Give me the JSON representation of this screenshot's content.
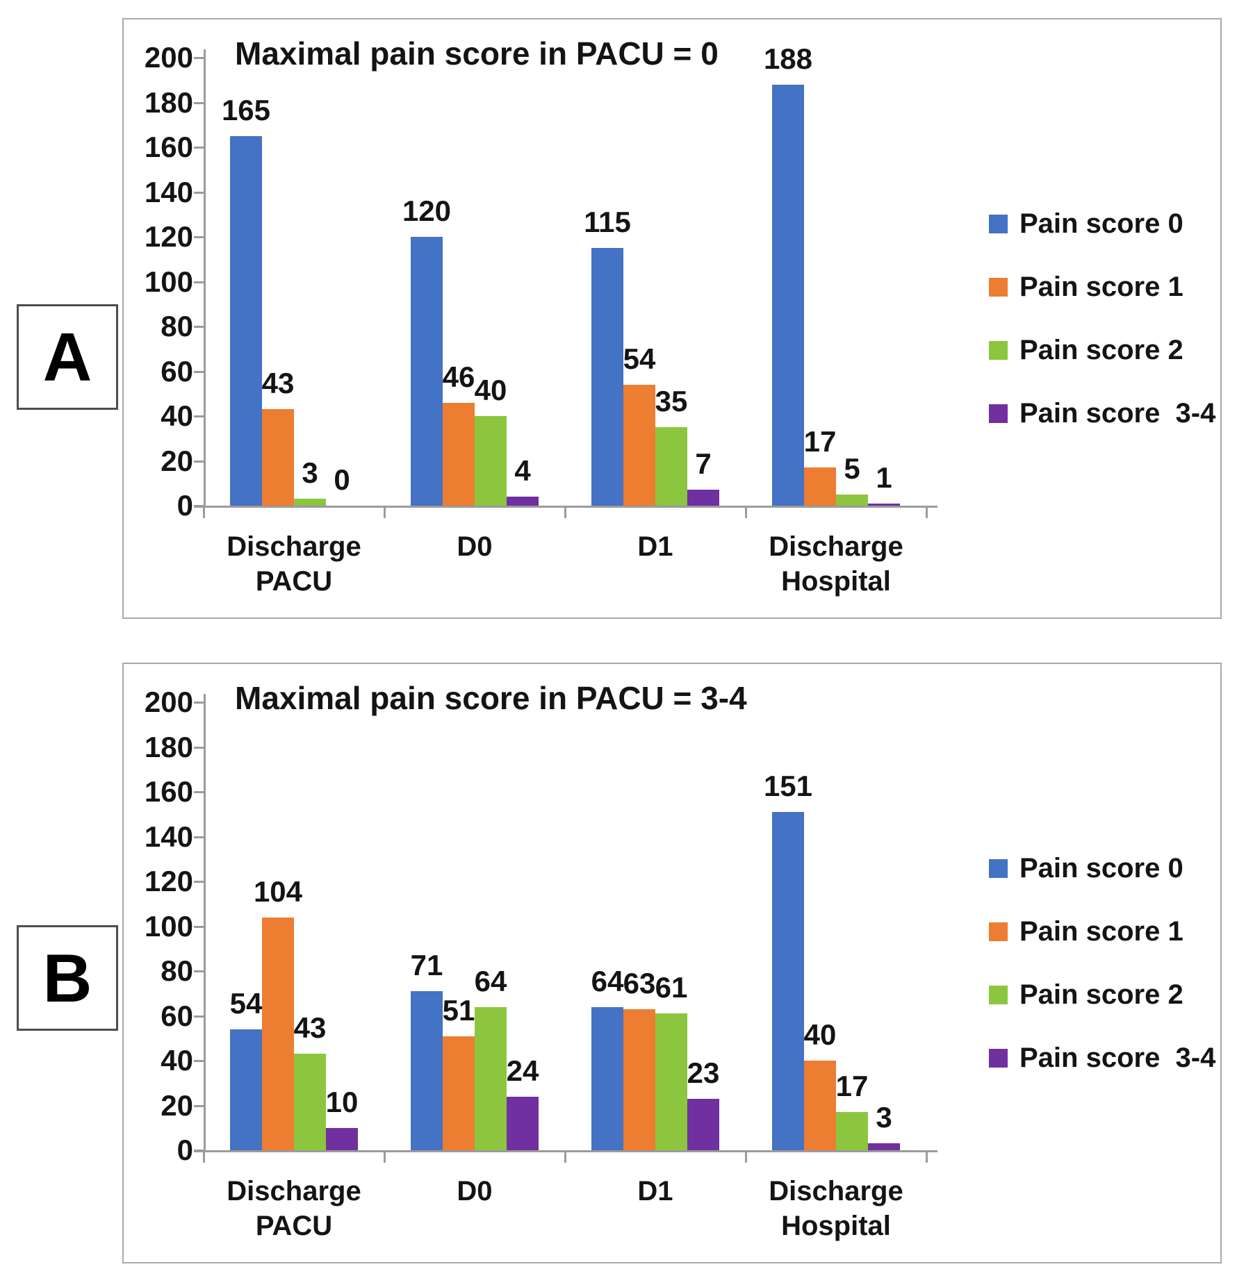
{
  "figure_labels": {
    "panel_a": "A",
    "panel_b": "B"
  },
  "legend": {
    "position": "right",
    "entries": [
      {
        "label": "Pain score 0",
        "color": "#4472C4"
      },
      {
        "label": "Pain score 1",
        "color": "#ED7D31"
      },
      {
        "label": "Pain score 2",
        "color": "#8CC63F"
      },
      {
        "label": "Pain score  3-4",
        "color": "#7030A0"
      }
    ]
  },
  "chart_data": [
    {
      "type": "bar",
      "panel": "A",
      "title": "Maximal pain score in PACU = 0",
      "xlabel": "",
      "ylabel": "",
      "ylim": [
        0,
        200
      ],
      "ytick_step": 20,
      "yticks": [
        0,
        20,
        40,
        60,
        80,
        100,
        120,
        140,
        160,
        180,
        200
      ],
      "grid": false,
      "data_labels": true,
      "legend_position": "right",
      "categories": [
        "Discharge PACU",
        "D0",
        "D1",
        "Discharge Hospital"
      ],
      "series": [
        {
          "name": "Pain score 0",
          "color": "#4472C4",
          "values": [
            165,
            120,
            115,
            188
          ]
        },
        {
          "name": "Pain score 1",
          "color": "#ED7D31",
          "values": [
            43,
            46,
            54,
            17
          ]
        },
        {
          "name": "Pain score 2",
          "color": "#8CC63F",
          "values": [
            3,
            40,
            35,
            5
          ]
        },
        {
          "name": "Pain score  3-4",
          "color": "#7030A0",
          "values": [
            0,
            4,
            7,
            1
          ]
        }
      ]
    },
    {
      "type": "bar",
      "panel": "B",
      "title": "Maximal pain score in PACU = 3-4",
      "xlabel": "",
      "ylabel": "",
      "ylim": [
        0,
        200
      ],
      "ytick_step": 20,
      "yticks": [
        0,
        20,
        40,
        60,
        80,
        100,
        120,
        140,
        160,
        180,
        200
      ],
      "grid": false,
      "data_labels": true,
      "legend_position": "right",
      "categories": [
        "Discharge PACU",
        "D0",
        "D1",
        "Discharge Hospital"
      ],
      "series": [
        {
          "name": "Pain score 0",
          "color": "#4472C4",
          "values": [
            54,
            71,
            64,
            151
          ]
        },
        {
          "name": "Pain score 1",
          "color": "#ED7D31",
          "values": [
            104,
            51,
            63,
            40
          ]
        },
        {
          "name": "Pain score 2",
          "color": "#8CC63F",
          "values": [
            43,
            64,
            61,
            17
          ]
        },
        {
          "name": "Pain score  3-4",
          "color": "#7030A0",
          "values": [
            10,
            24,
            23,
            3
          ]
        }
      ]
    }
  ]
}
